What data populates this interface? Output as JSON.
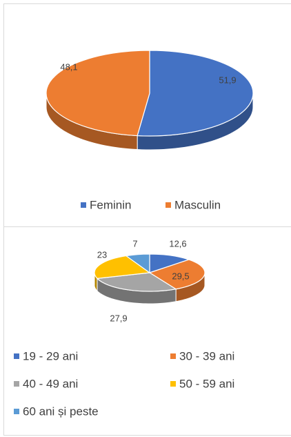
{
  "chart_data": [
    {
      "type": "pie",
      "categories": [
        "Feminin",
        "Masculin"
      ],
      "values": [
        51.9,
        48.1
      ],
      "value_labels": [
        "51,9",
        "48,1"
      ],
      "colors": [
        "#4472c4",
        "#ed7d31"
      ],
      "legend": "bottom"
    },
    {
      "type": "pie",
      "categories": [
        "19 - 29 ani",
        "30 - 39 ani",
        "40 - 49 ani",
        "50 - 59 ani",
        "60 ani și peste"
      ],
      "values": [
        12.6,
        29.5,
        27.9,
        23,
        7
      ],
      "value_labels": [
        "12,6",
        "29,5",
        "27,9",
        "23",
        "7"
      ],
      "colors": [
        "#4472c4",
        "#ed7d31",
        "#a5a5a5",
        "#ffc000",
        "#5b9bd5"
      ],
      "legend": "bottom"
    }
  ]
}
